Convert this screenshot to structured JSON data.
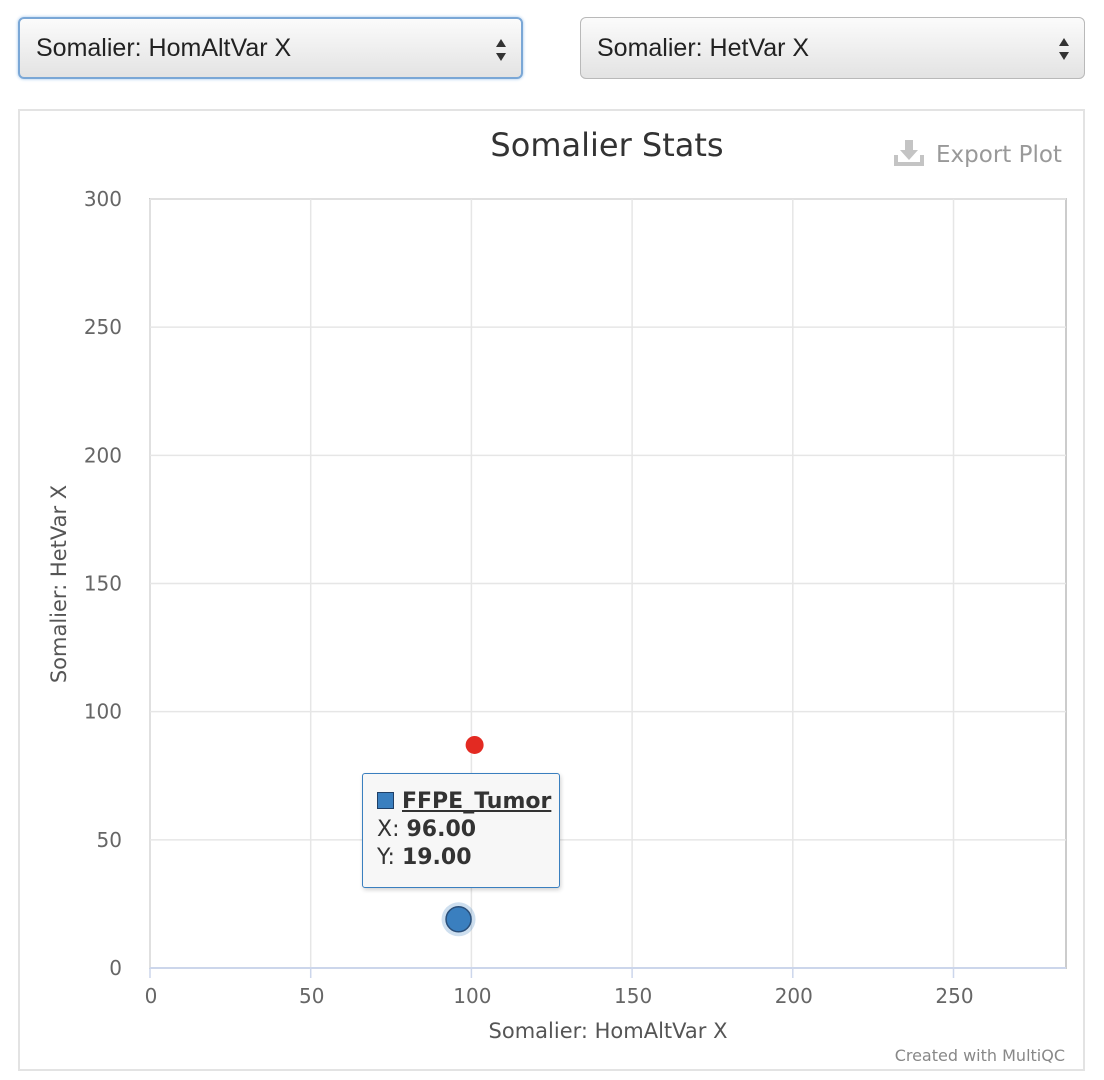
{
  "controls": {
    "x_select": {
      "value": "Somalier: HomAltVar X"
    },
    "y_select": {
      "value": "Somalier: HetVar X"
    }
  },
  "export_label": "Export Plot",
  "credit": "Created with MultiQC",
  "tooltip": {
    "sample": "FFPE_Tumor",
    "x_label": "X:",
    "x_value": "96.00",
    "y_label": "Y:",
    "y_value": "19.00"
  },
  "colors": {
    "series_blue": "#3a7fbf",
    "highlight_red": "#e32a22",
    "grid": "#e6e6e6",
    "axis": "#ccd6eb"
  },
  "chart_data": {
    "type": "scatter",
    "title": "Somalier Stats",
    "xlabel": "Somalier: HomAltVar X",
    "ylabel": "Somalier: HetVar X",
    "xlim": [
      0,
      285
    ],
    "ylim": [
      0,
      300
    ],
    "xticks": [
      0,
      50,
      100,
      150,
      200,
      250
    ],
    "yticks": [
      0,
      50,
      100,
      150,
      200,
      250,
      300
    ],
    "grid": true,
    "points": [
      {
        "name": "FFPE_Tumor",
        "x": 96,
        "y": 19,
        "color": "#3a7fbf",
        "hovered": true
      },
      {
        "x": 101,
        "y": 87,
        "color": "#e32a22"
      }
    ]
  }
}
